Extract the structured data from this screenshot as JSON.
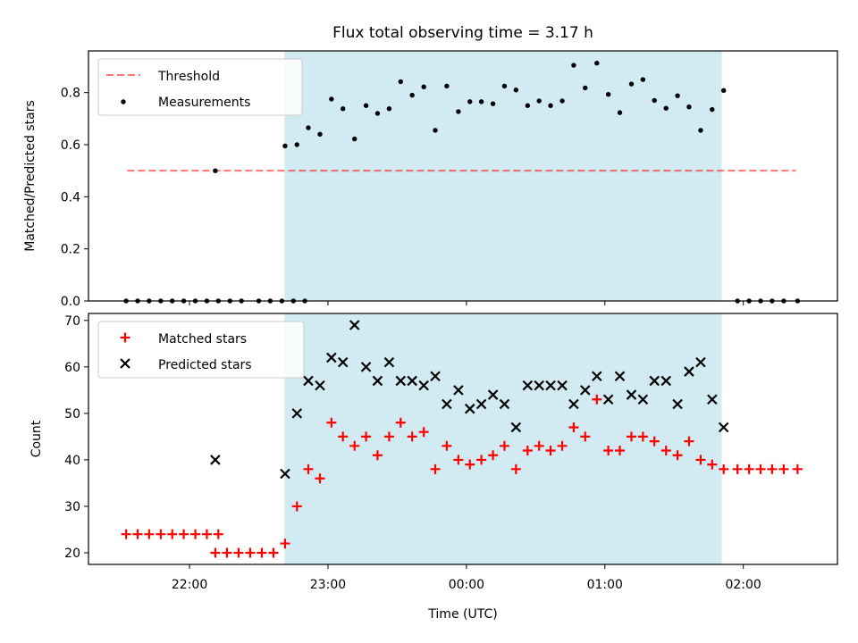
{
  "colors": {
    "shade": "#add8e6",
    "threshold": "#ff0000",
    "measurements": "#000000",
    "matched": "#ff0000",
    "predicted": "#000000"
  },
  "title": "Flux total observing time = 3.17 h",
  "x_axis": {
    "label": "Time (UTC)",
    "ticks": [
      {
        "value": 22.0,
        "label": "22:00"
      },
      {
        "value": 23.0,
        "label": "23:00"
      },
      {
        "value": 24.0,
        "label": "00:00"
      },
      {
        "value": 25.0,
        "label": "01:00"
      },
      {
        "value": 26.0,
        "label": "02:00"
      }
    ]
  },
  "chart_data": [
    {
      "type": "scatter",
      "ylabel": "Matched/Predicted stars",
      "xlim": [
        21.27,
        26.68
      ],
      "ylim": [
        0,
        0.96
      ],
      "yticks": [
        0.0,
        0.2,
        0.4,
        0.6,
        0.8
      ],
      "ytick_labels": [
        "0.0",
        "0.2",
        "0.4",
        "0.6",
        "0.8"
      ],
      "legend": {
        "position": "top-left",
        "entries": [
          "Threshold",
          "Measurements"
        ]
      },
      "shaded_x": [
        22.686,
        25.844
      ],
      "threshold": {
        "name": "Threshold",
        "x": [
          21.55,
          26.38
        ],
        "y": 0.5,
        "style": "dashed"
      },
      "series": [
        {
          "name": "Measurements",
          "marker": "dot",
          "x": [
            21.542,
            21.625,
            21.708,
            21.792,
            21.875,
            21.958,
            22.042,
            22.125,
            22.208,
            22.292,
            22.375,
            22.5,
            22.583,
            22.667,
            22.75,
            22.833,
            22.69,
            22.776,
            22.858,
            22.942,
            23.025,
            23.108,
            23.192,
            23.275,
            23.358,
            23.442,
            23.525,
            23.608,
            23.692,
            23.775,
            23.858,
            23.942,
            24.025,
            24.108,
            24.192,
            24.275,
            24.358,
            24.442,
            24.525,
            24.608,
            24.692,
            24.775,
            24.858,
            24.942,
            25.025,
            25.108,
            25.192,
            25.275,
            25.358,
            25.442,
            25.525,
            25.608,
            25.692,
            25.775,
            25.858,
            25.958,
            26.042,
            26.125,
            26.208,
            26.292,
            26.392
          ],
          "y": [
            0,
            0,
            0,
            0,
            0,
            0,
            0,
            0,
            0,
            0,
            0,
            0,
            0,
            0,
            0,
            0,
            0.595,
            0.6,
            0.665,
            0.64,
            0.775,
            0.738,
            0.622,
            0.75,
            0.72,
            0.738,
            0.842,
            0.79,
            0.822,
            0.655,
            0.825,
            0.727,
            0.765,
            0.765,
            0.757,
            0.825,
            0.81,
            0.75,
            0.768,
            0.75,
            0.768,
            0.905,
            0.818,
            0.913,
            0.793,
            0.723,
            0.833,
            0.85,
            0.77,
            0.74,
            0.788,
            0.745,
            0.655,
            0.735,
            0.808,
            0,
            0,
            0,
            0,
            0,
            0
          ],
          "extra_points": [
            {
              "x": 22.186,
              "y": 0.5
            }
          ]
        }
      ]
    },
    {
      "type": "scatter",
      "ylabel": "Count",
      "xlim": [
        21.27,
        26.68
      ],
      "ylim": [
        17.5,
        71.5
      ],
      "yticks": [
        20,
        30,
        40,
        50,
        60,
        70
      ],
      "ytick_labels": [
        "20",
        "30",
        "40",
        "50",
        "60",
        "70"
      ],
      "legend": {
        "position": "top-left",
        "entries": [
          "Matched stars",
          "Predicted stars"
        ]
      },
      "shaded_x": [
        22.686,
        25.844
      ],
      "series": [
        {
          "name": "Matched stars",
          "marker": "plus",
          "x": [
            21.542,
            21.625,
            21.708,
            21.792,
            21.875,
            21.958,
            22.042,
            22.125,
            22.208,
            22.186,
            22.27,
            22.354,
            22.438,
            22.522,
            22.606,
            22.69,
            22.776,
            22.858,
            22.942,
            23.025,
            23.108,
            23.192,
            23.275,
            23.358,
            23.442,
            23.525,
            23.608,
            23.692,
            23.775,
            23.858,
            23.942,
            24.025,
            24.108,
            24.192,
            24.275,
            24.358,
            24.442,
            24.525,
            24.608,
            24.692,
            24.775,
            24.858,
            24.942,
            25.025,
            25.108,
            25.192,
            25.275,
            25.358,
            25.442,
            25.525,
            25.608,
            25.692,
            25.775,
            25.858,
            25.958,
            26.042,
            26.125,
            26.208,
            26.292,
            26.392
          ],
          "y": [
            24,
            24,
            24,
            24,
            24,
            24,
            24,
            24,
            24,
            20,
            20,
            20,
            20,
            20,
            20,
            22,
            30,
            38,
            36,
            48,
            45,
            43,
            45,
            41,
            45,
            48,
            45,
            46,
            38,
            43,
            40,
            39,
            40,
            41,
            43,
            38,
            42,
            43,
            42,
            43,
            47,
            45,
            53,
            42,
            42,
            45,
            45,
            44,
            42,
            41,
            44,
            40,
            39,
            38,
            38,
            38,
            38,
            38,
            38,
            38
          ]
        },
        {
          "name": "Predicted stars",
          "marker": "x",
          "x": [
            22.186,
            22.69,
            22.776,
            22.858,
            22.942,
            23.025,
            23.108,
            23.192,
            23.275,
            23.358,
            23.442,
            23.525,
            23.608,
            23.692,
            23.775,
            23.858,
            23.942,
            24.025,
            24.108,
            24.192,
            24.275,
            24.358,
            24.442,
            24.525,
            24.608,
            24.692,
            24.775,
            24.858,
            24.942,
            25.025,
            25.108,
            25.192,
            25.275,
            25.358,
            25.442,
            25.525,
            25.608,
            25.692,
            25.775,
            25.858
          ],
          "y": [
            40,
            37,
            50,
            57,
            56,
            62,
            61,
            69,
            60,
            57,
            61,
            57,
            57,
            56,
            58,
            52,
            55,
            51,
            52,
            54,
            52,
            47,
            56,
            56,
            56,
            56,
            52,
            55,
            58,
            53,
            58,
            54,
            53,
            57,
            57,
            52,
            59,
            61,
            53,
            47
          ]
        }
      ]
    }
  ]
}
